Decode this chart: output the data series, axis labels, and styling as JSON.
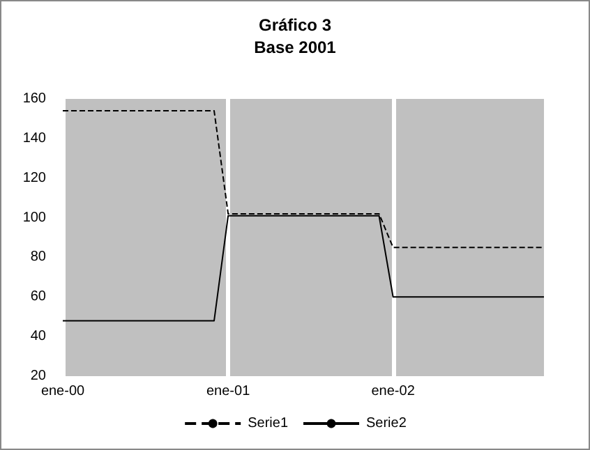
{
  "chart_data": {
    "type": "line",
    "title": "Gráfico 3",
    "subtitle": "Base 2001",
    "x": [
      "2000-01",
      "2000-12",
      "2001-01",
      "2001-12",
      "2002-01",
      "2002-12"
    ],
    "series": [
      {
        "name": "Serie1",
        "color": "#000000",
        "line_style": "dashed",
        "values": [
          154,
          154,
          102,
          102,
          85,
          85
        ]
      },
      {
        "name": "Serie2",
        "color": "#000000",
        "line_style": "solid",
        "values": [
          48,
          48,
          101,
          101,
          60,
          60
        ]
      }
    ],
    "xlim": [
      "2000-01",
      "2002-12"
    ],
    "xticks": [
      {
        "value": "2000-01",
        "label": "ene-00"
      },
      {
        "value": "2001-01",
        "label": "ene-01"
      },
      {
        "value": "2002-01",
        "label": "ene-02"
      }
    ],
    "ylim": [
      20,
      160
    ],
    "yticks": [
      20,
      40,
      60,
      80,
      100,
      120,
      140,
      160
    ],
    "grid": "x",
    "legend": "bottom",
    "marker": "none"
  }
}
